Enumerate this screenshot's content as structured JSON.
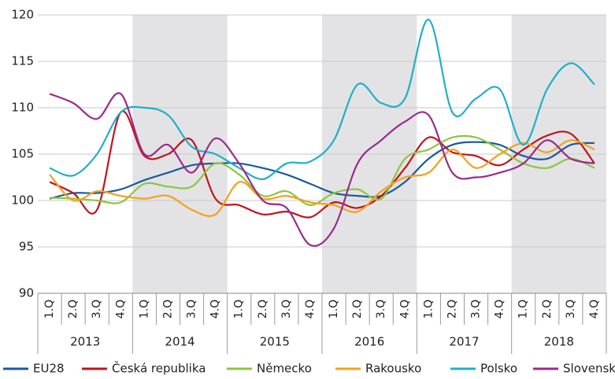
{
  "chart_data": {
    "type": "line",
    "categories": [
      "1.Q",
      "2.Q",
      "3.Q",
      "4.Q",
      "1.Q",
      "2.Q",
      "3.Q",
      "4.Q",
      "1.Q",
      "2.Q",
      "3.Q",
      "4.Q",
      "1.Q",
      "2.Q",
      "3.Q",
      "4.Q",
      "1.Q",
      "2.Q",
      "3.Q",
      "4.Q",
      "1.Q",
      "2.Q",
      "3.Q",
      "4.Q"
    ],
    "years": [
      "2013",
      "2014",
      "2015",
      "2016",
      "2017",
      "2018"
    ],
    "ylim": [
      90,
      120
    ],
    "yticks": [
      90,
      95,
      100,
      105,
      110,
      115,
      120
    ],
    "grid": true,
    "legend": "bottom",
    "series": [
      {
        "name": "EU28",
        "color": "#1a5a9e",
        "values": [
          100.2,
          100.8,
          100.8,
          101.2,
          102.2,
          103.0,
          103.8,
          104.0,
          104.0,
          103.5,
          102.8,
          101.8,
          100.8,
          100.5,
          100.5,
          102.0,
          104.5,
          106.0,
          106.3,
          106.0,
          104.8,
          104.5,
          106.0,
          106.2
        ]
      },
      {
        "name": "Česká republika",
        "color": "#c0141c",
        "values": [
          102.0,
          100.8,
          99.0,
          109.5,
          104.8,
          105.0,
          106.5,
          100.2,
          99.5,
          98.5,
          98.8,
          98.2,
          99.8,
          99.2,
          100.5,
          103.5,
          106.8,
          105.2,
          104.8,
          103.8,
          105.5,
          107.0,
          107.2,
          104.0
        ]
      },
      {
        "name": "Německo",
        "color": "#8cc63f",
        "values": [
          100.3,
          100.2,
          100.0,
          99.8,
          101.8,
          101.5,
          101.5,
          104.0,
          102.8,
          100.5,
          101.0,
          99.5,
          100.8,
          101.2,
          100.2,
          104.5,
          105.5,
          106.8,
          106.8,
          105.5,
          104.0,
          103.5,
          104.5,
          103.5
        ]
      },
      {
        "name": "Rakousko",
        "color": "#f5a01a",
        "values": [
          102.8,
          100.0,
          101.0,
          100.5,
          100.2,
          100.5,
          99.0,
          98.5,
          102.0,
          100.2,
          100.5,
          99.8,
          99.5,
          98.8,
          101.0,
          102.5,
          103.0,
          105.5,
          103.5,
          105.0,
          106.2,
          105.2,
          106.5,
          105.5
        ]
      },
      {
        "name": "Polsko",
        "color": "#1fb0c6",
        "values": [
          103.5,
          102.7,
          105.0,
          109.5,
          110.0,
          109.2,
          105.8,
          105.0,
          103.5,
          102.3,
          104.0,
          104.2,
          106.5,
          112.5,
          110.5,
          111.0,
          119.5,
          109.5,
          111.0,
          112.0,
          106.0,
          112.0,
          114.8,
          112.5
        ]
      },
      {
        "name": "Slovensko",
        "color": "#9a2a8e",
        "values": [
          111.5,
          110.5,
          108.8,
          111.5,
          105.0,
          106.0,
          103.0,
          106.7,
          104.0,
          100.0,
          99.2,
          95.2,
          97.0,
          104.0,
          106.5,
          108.5,
          109.2,
          103.0,
          102.5,
          103.0,
          104.0,
          106.5,
          104.5,
          104.0
        ]
      }
    ]
  }
}
